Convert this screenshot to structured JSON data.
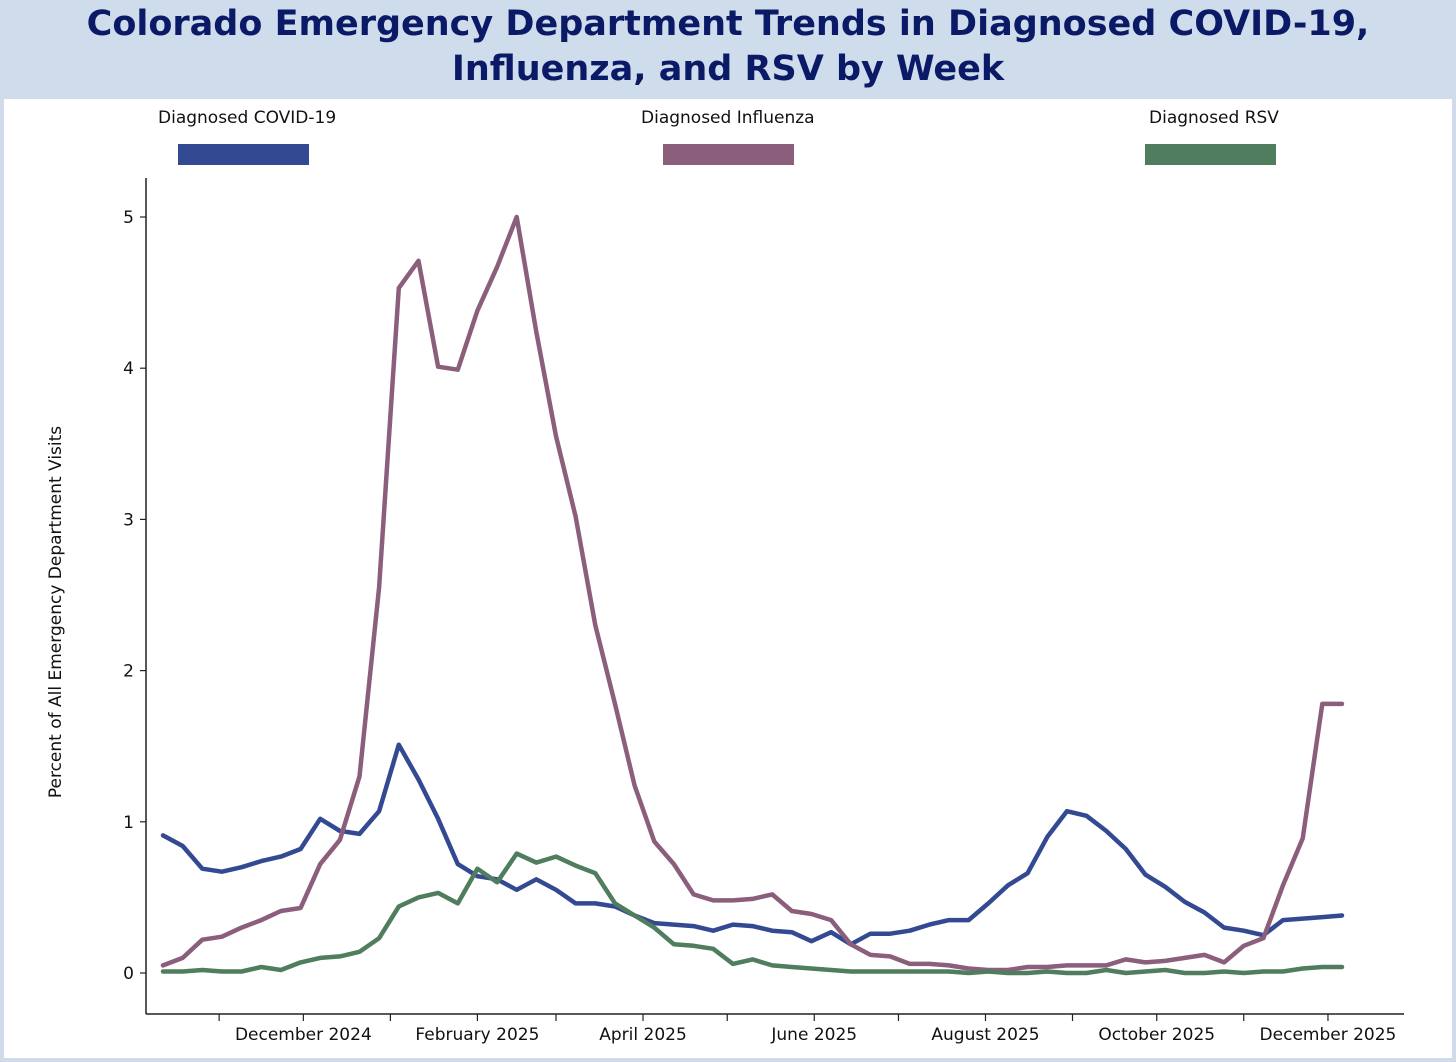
{
  "title": "Colorado Emergency Department Trends in Diagnosed COVID-19, Influenza, and RSV by Week",
  "chart_data": {
    "type": "line",
    "title": "Colorado Emergency Department Trends in Diagnosed COVID-19, Influenza, and RSV by Week",
    "ylabel": "Percent of All Emergency Department Visits",
    "xlabel": "",
    "ylim": [
      0,
      5.25
    ],
    "yticks": [
      "0",
      "1",
      "2",
      "3",
      "4",
      "5"
    ],
    "xtick_labels": [
      "December 2024",
      "February 2025",
      "April 2025",
      "June 2025",
      "August 2025",
      "October 2025",
      "December 2025"
    ],
    "legend_position": "top",
    "grid": false,
    "x": [
      "2024-10-12",
      "2024-10-19",
      "2024-10-26",
      "2024-11-02",
      "2024-11-09",
      "2024-11-16",
      "2024-11-23",
      "2024-11-30",
      "2024-12-07",
      "2024-12-14",
      "2024-12-21",
      "2024-12-28",
      "2025-01-04",
      "2025-01-11",
      "2025-01-18",
      "2025-01-25",
      "2025-02-01",
      "2025-02-08",
      "2025-02-15",
      "2025-02-22",
      "2025-03-01",
      "2025-03-08",
      "2025-03-15",
      "2025-03-22",
      "2025-03-29",
      "2025-04-05",
      "2025-04-12",
      "2025-04-19",
      "2025-04-26",
      "2025-05-03",
      "2025-05-10",
      "2025-05-17",
      "2025-05-24",
      "2025-05-31",
      "2025-06-07",
      "2025-06-14",
      "2025-06-21",
      "2025-06-28",
      "2025-07-05",
      "2025-07-12",
      "2025-07-19",
      "2025-07-26",
      "2025-08-02",
      "2025-08-09",
      "2025-08-16",
      "2025-08-23",
      "2025-08-30",
      "2025-09-06",
      "2025-09-13",
      "2025-09-20",
      "2025-09-27",
      "2025-10-04",
      "2025-10-11",
      "2025-10-18",
      "2025-10-25",
      "2025-11-01",
      "2025-11-08",
      "2025-11-15",
      "2025-11-22",
      "2025-11-29",
      "2025-12-06"
    ],
    "series": [
      {
        "name": "Diagnosed COVID-19",
        "color": "#334a93",
        "values": [
          0.91,
          0.84,
          0.69,
          0.67,
          0.7,
          0.74,
          0.77,
          0.82,
          1.02,
          0.94,
          0.92,
          1.07,
          1.51,
          1.28,
          1.02,
          0.72,
          0.64,
          0.62,
          0.55,
          0.62,
          0.55,
          0.46,
          0.46,
          0.44,
          0.38,
          0.33,
          0.32,
          0.31,
          0.28,
          0.32,
          0.31,
          0.28,
          0.27,
          0.21,
          0.27,
          0.19,
          0.26,
          0.26,
          0.28,
          0.32,
          0.35,
          0.35,
          0.46,
          0.58,
          0.66,
          0.9,
          1.07,
          1.04,
          0.94,
          0.82,
          0.65,
          0.57,
          0.47,
          0.4,
          0.3,
          0.28,
          0.25,
          0.35,
          0.36,
          0.37,
          0.38
        ]
      },
      {
        "name": "Diagnosed Influenza",
        "color": "#8b5f7c",
        "values": [
          0.05,
          0.1,
          0.22,
          0.24,
          0.3,
          0.35,
          0.41,
          0.43,
          0.72,
          0.88,
          1.3,
          2.55,
          4.53,
          4.71,
          4.01,
          3.99,
          4.38,
          4.67,
          5.0,
          4.24,
          3.55,
          3.02,
          2.3,
          1.78,
          1.24,
          0.87,
          0.72,
          0.52,
          0.48,
          0.48,
          0.49,
          0.52,
          0.41,
          0.39,
          0.35,
          0.19,
          0.12,
          0.11,
          0.06,
          0.06,
          0.05,
          0.03,
          0.02,
          0.02,
          0.04,
          0.04,
          0.05,
          0.05,
          0.05,
          0.09,
          0.07,
          0.08,
          0.1,
          0.12,
          0.07,
          0.18,
          0.23,
          0.58,
          0.89,
          1.78,
          1.78
        ]
      },
      {
        "name": "Diagnosed RSV",
        "color": "#4f7d5e",
        "values": [
          0.01,
          0.01,
          0.02,
          0.01,
          0.01,
          0.04,
          0.02,
          0.07,
          0.1,
          0.11,
          0.14,
          0.23,
          0.44,
          0.5,
          0.53,
          0.46,
          0.69,
          0.6,
          0.79,
          0.73,
          0.77,
          0.71,
          0.66,
          0.46,
          0.38,
          0.3,
          0.19,
          0.18,
          0.16,
          0.06,
          0.09,
          0.05,
          0.04,
          0.03,
          0.02,
          0.01,
          0.01,
          0.01,
          0.01,
          0.01,
          0.01,
          0.0,
          0.01,
          0.0,
          0.0,
          0.01,
          0.0,
          0.0,
          0.02,
          0.0,
          0.01,
          0.02,
          0.0,
          0.0,
          0.01,
          0.0,
          0.01,
          0.01,
          0.03,
          0.04,
          0.04
        ]
      }
    ]
  }
}
